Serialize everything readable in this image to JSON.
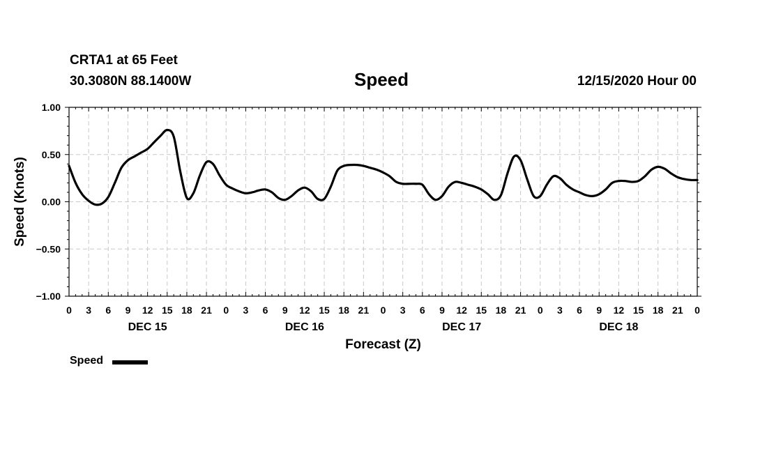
{
  "header": {
    "station": "CRTA1 at 65 Feet",
    "coords": "30.3080N 88.1400W",
    "title": "Speed",
    "runtime": "12/15/2020 Hour 00"
  },
  "legend": {
    "label": "Speed",
    "color": "#000000"
  },
  "chart_data": {
    "type": "line",
    "title": "Speed",
    "xlabel": "Forecast (Z)",
    "ylabel": "Speed (Knots)",
    "xunit": "forecast hour from 12/15/2020 00Z",
    "xlim": [
      0,
      96
    ],
    "ylim": [
      -1.0,
      1.0
    ],
    "yticks": [
      -1.0,
      -0.5,
      0.0,
      0.5,
      1.0
    ],
    "ytick_labels": [
      "−1.00",
      "−0.50",
      "0.00",
      "0.50",
      "1.00"
    ],
    "xtick_labels": [
      "0",
      "3",
      "6",
      "9",
      "12",
      "15",
      "18",
      "21",
      "0",
      "3",
      "6",
      "9",
      "12",
      "15",
      "18",
      "21",
      "0",
      "3",
      "6",
      "9",
      "12",
      "15",
      "18",
      "21",
      "0",
      "3",
      "6",
      "9",
      "12",
      "15",
      "18",
      "21",
      "0"
    ],
    "day_labels": [
      "DEC 15",
      "DEC 16",
      "DEC 17",
      "DEC 18"
    ],
    "grid": true,
    "legend_position": "bottom-left",
    "series": [
      {
        "name": "Speed",
        "color": "#000000",
        "x": [
          0,
          1,
          2,
          3,
          4,
          5,
          6,
          7,
          8,
          9,
          10,
          11,
          12,
          13,
          14,
          15,
          16,
          17,
          18,
          19,
          20,
          21,
          22,
          23,
          24,
          25,
          26,
          27,
          28,
          29,
          30,
          31,
          32,
          33,
          34,
          35,
          36,
          37,
          38,
          39,
          40,
          41,
          42,
          43,
          44,
          45,
          46,
          47,
          48,
          49,
          50,
          51,
          52,
          53,
          54,
          55,
          56,
          57,
          58,
          59,
          60,
          61,
          62,
          63,
          64,
          65,
          66,
          67,
          68,
          69,
          70,
          71,
          72,
          73,
          74,
          75,
          76,
          77,
          78,
          79,
          80,
          81,
          82,
          83,
          84,
          85,
          86,
          87,
          88,
          89,
          90,
          91,
          92,
          93,
          94,
          95,
          96
        ],
        "y": [
          0.38,
          0.2,
          0.08,
          0.01,
          -0.03,
          -0.02,
          0.05,
          0.2,
          0.36,
          0.44,
          0.48,
          0.52,
          0.56,
          0.63,
          0.7,
          0.76,
          0.69,
          0.32,
          0.04,
          0.09,
          0.28,
          0.42,
          0.4,
          0.28,
          0.18,
          0.14,
          0.11,
          0.09,
          0.1,
          0.12,
          0.13,
          0.1,
          0.04,
          0.02,
          0.06,
          0.12,
          0.15,
          0.11,
          0.03,
          0.03,
          0.16,
          0.33,
          0.38,
          0.39,
          0.39,
          0.38,
          0.36,
          0.34,
          0.31,
          0.27,
          0.21,
          0.19,
          0.19,
          0.19,
          0.18,
          0.08,
          0.02,
          0.06,
          0.16,
          0.21,
          0.2,
          0.18,
          0.16,
          0.13,
          0.08,
          0.02,
          0.07,
          0.3,
          0.48,
          0.44,
          0.24,
          0.06,
          0.06,
          0.18,
          0.27,
          0.25,
          0.18,
          0.13,
          0.1,
          0.07,
          0.06,
          0.08,
          0.13,
          0.2,
          0.22,
          0.22,
          0.21,
          0.22,
          0.27,
          0.34,
          0.37,
          0.35,
          0.3,
          0.26,
          0.24,
          0.23,
          0.23
        ]
      }
    ]
  }
}
